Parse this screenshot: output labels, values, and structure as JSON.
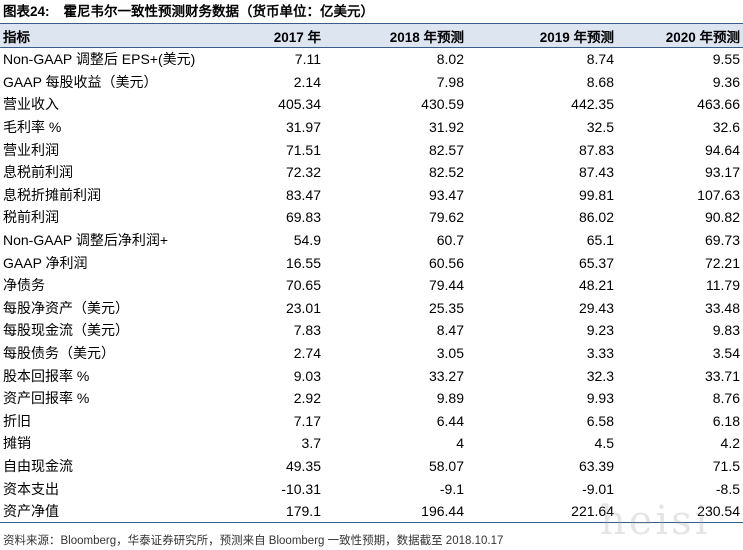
{
  "caption": {
    "label": "图表24:",
    "text": "霍尼韦尔一致性预测财务数据（货币单位：亿美元）"
  },
  "table": {
    "headers": [
      "指标",
      "2017 年",
      "2018 年预测",
      "2019 年预测",
      "2020 年预测"
    ],
    "rows": [
      [
        "Non-GAAP 调整后 EPS+(美元)",
        "7.11",
        "8.02",
        "8.74",
        "9.55"
      ],
      [
        "GAAP 每股收益（美元）",
        "2.14",
        "7.98",
        "8.68",
        "9.36"
      ],
      [
        "营业收入",
        "405.34",
        "430.59",
        "442.35",
        "463.66"
      ],
      [
        "毛利率 %",
        "31.97",
        "31.92",
        "32.5",
        "32.6"
      ],
      [
        "营业利润",
        "71.51",
        "82.57",
        "87.83",
        "94.64"
      ],
      [
        "息税前利润",
        "72.32",
        "82.52",
        "87.43",
        "93.17"
      ],
      [
        "息税折摊前利润",
        "83.47",
        "93.47",
        "99.81",
        "107.63"
      ],
      [
        "税前利润",
        "69.83",
        "79.62",
        "86.02",
        "90.82"
      ],
      [
        "Non-GAAP 调整后净利润+",
        "54.9",
        "60.7",
        "65.1",
        "69.73"
      ],
      [
        "GAAP 净利润",
        "16.55",
        "60.56",
        "65.37",
        "72.21"
      ],
      [
        "净债务",
        "70.65",
        "79.44",
        "48.21",
        "11.79"
      ],
      [
        "每股净资产（美元）",
        "23.01",
        "25.35",
        "29.43",
        "33.48"
      ],
      [
        "每股现金流（美元）",
        "7.83",
        "8.47",
        "9.23",
        "9.83"
      ],
      [
        "每股债务（美元）",
        "2.74",
        "3.05",
        "3.33",
        "3.54"
      ],
      [
        "股本回报率 %",
        "9.03",
        "33.27",
        "32.3",
        "33.71"
      ],
      [
        "资产回报率 %",
        "2.92",
        "9.89",
        "9.93",
        "8.76"
      ],
      [
        "折旧",
        "7.17",
        "6.44",
        "6.58",
        "6.18"
      ],
      [
        "摊销",
        "3.7",
        "4",
        "4.5",
        "4.2"
      ],
      [
        "自由现金流",
        "49.35",
        "58.07",
        "63.39",
        "71.5"
      ],
      [
        "资本支出",
        "-10.31",
        "-9.1",
        "-9.01",
        "-8.5"
      ],
      [
        "资产净值",
        "179.1",
        "196.44",
        "221.64",
        "230.54"
      ]
    ]
  },
  "footer": "资料来源：Bloomberg，华泰证券研究所，预测来自 Bloomberg 一致性预期，数据截至 2018.10.17",
  "watermark": "heisi",
  "colors": {
    "header_bg": "#dde5f1",
    "rule": "#385d8a"
  }
}
